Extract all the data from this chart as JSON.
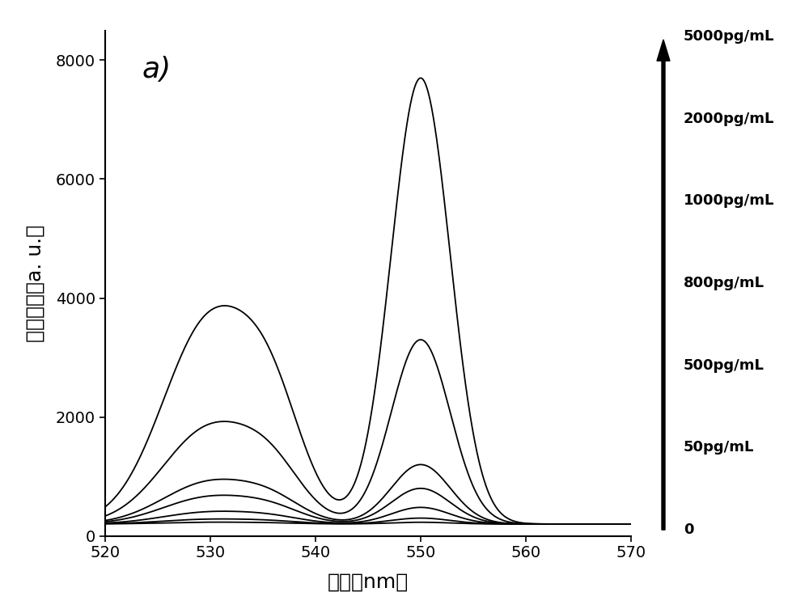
{
  "title_label": "a)",
  "xlabel": "波长（nm）",
  "ylabel": "荧光强度（a. u.）",
  "xlim": [
    520,
    570
  ],
  "ylim": [
    0,
    8500
  ],
  "yticks": [
    0,
    2000,
    4000,
    6000,
    8000
  ],
  "xticks": [
    520,
    530,
    540,
    550,
    560,
    570
  ],
  "legend_labels": [
    "5000pg/mL",
    "2000pg/mL",
    "1000pg/mL",
    "800pg/mL",
    "500pg/mL",
    "50pg/mL",
    "0"
  ],
  "background_color": "#ffffff",
  "line_color": "#000000",
  "base_level": 200,
  "peak1_x": 530,
  "peak2_x": 550,
  "peak1_sigma": 4.5,
  "peak2_sigma": 2.8,
  "peak1_heights": [
    30,
    80,
    200,
    450,
    700,
    1600,
    3400
  ],
  "peak2_heights": [
    30,
    100,
    280,
    600,
    1000,
    3100,
    7500
  ],
  "shoulder_heights": [
    10,
    30,
    80,
    180,
    280,
    650,
    1400
  ],
  "shoulder_x": 536
}
